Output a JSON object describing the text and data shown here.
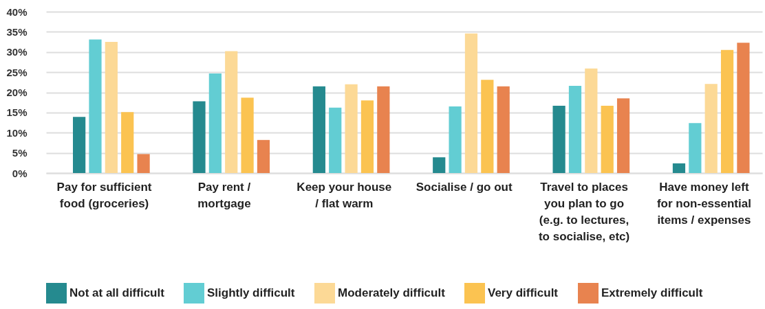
{
  "chart_data": {
    "type": "bar",
    "categories": [
      "Pay for sufficient\nfood (groceries)",
      "Pay rent /\nmortgage",
      "Keep your house\n/ flat warm",
      "Socialise / go out",
      "Travel to places\nyou plan to go\n(e.g. to lectures,\nto socialise, etc)",
      "Have money left\nfor non-essential\nitems / expenses"
    ],
    "series": [
      {
        "name": "Not at all difficult",
        "color": "#258a8f",
        "values": [
          13.9,
          17.8,
          21.5,
          3.9,
          16.7,
          2.4
        ]
      },
      {
        "name": "Slightly difficult",
        "color": "#62cdd3",
        "values": [
          33.1,
          24.7,
          16.2,
          16.5,
          21.6,
          12.4
        ]
      },
      {
        "name": "Moderately difficult",
        "color": "#fcd996",
        "values": [
          32.5,
          30.2,
          22,
          34.6,
          25.9,
          22.1
        ]
      },
      {
        "name": "Very difficult",
        "color": "#fbc351",
        "values": [
          15.1,
          18.7,
          18,
          23.1,
          16.7,
          30.5
        ]
      },
      {
        "name": "Extremely difficult",
        "color": "#e8834f",
        "values": [
          4.7,
          8.2,
          21.5,
          21.5,
          18.5,
          32.3
        ]
      }
    ],
    "ylim": [
      0,
      40
    ],
    "yticks": [
      {
        "value": 0,
        "label": "0%"
      },
      {
        "value": 5,
        "label": "5%"
      },
      {
        "value": 10,
        "label": "10%"
      },
      {
        "value": 15,
        "label": "15%"
      },
      {
        "value": 20,
        "label": "20%"
      },
      {
        "value": 25,
        "label": "25%"
      },
      {
        "value": 30,
        "label": "30%"
      },
      {
        "value": 35,
        "label": "35%"
      },
      {
        "value": 40,
        "label": "40%"
      }
    ],
    "grid": "y",
    "legend": "bottom"
  }
}
